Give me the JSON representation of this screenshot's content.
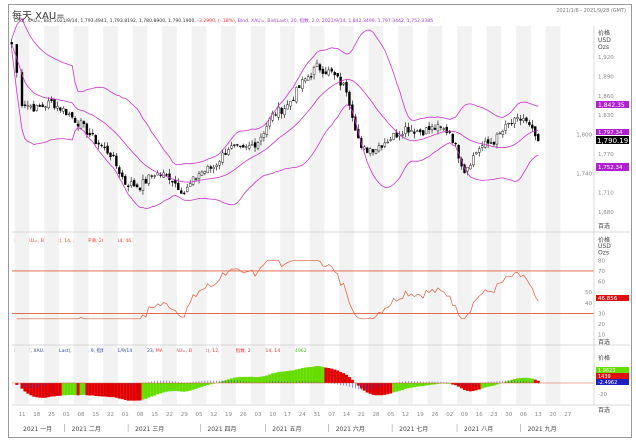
{
  "header": {
    "title": "每天 XAU=",
    "date_range": "2021/1/6 - 2021/9/28 (GMT)"
  },
  "main_legend": {
    "candle": "Cndl, XAU=, Bid, 2021/9/14, 1,793.4941, 1,793.8192, 1,780.8900, 1,790.1900, ",
    "change": "-3.2990, (-.18%), ",
    "bollinger": "Blnd, XAU=, Bid(Last), 20, 指数, 2.0, 2021/9/14, 1,842.3499, 1,797.3442, 1,752.3385"
  },
  "rsi_legend": "RSI, XAU=, Bid(Last), 14, 威尔德平滑, 2021/9/14, 46.856",
  "macd_legend": {
    "a": "MACDF, XAU=, Bid(Last), 12, 26, 9, 指数, 2021/9/14, -1.9623, ",
    "b": "MACD, XAU=, Bid(Last), 12, 26, 9, 指数, 2021/9/14, 1439, ",
    "c": "-2.4962"
  },
  "axis_units": {
    "price": "价格",
    "currency": "USD",
    "unit": "Ozs"
  },
  "axis_footer": "百选",
  "price_tags": {
    "upper": "1,842.35",
    "last": "1,790.19",
    "middle": "1,797.34",
    "lower": "1,752.34",
    "rsi": "46.856",
    "macd1": "1.9623",
    "macd2": "1439",
    "macd3": "-2.4962"
  },
  "colors": {
    "up": "#ffffff",
    "down": "#000000",
    "bollinger": "#cc33cc",
    "rsi": "#e05a3a",
    "macd_pos": "#66dd00",
    "macd_neg": "#e00000",
    "macd_hist": "#3333cc",
    "tag_purple": "#b020d0",
    "tag_red": "#e01010"
  },
  "chart_data": [
    {
      "type": "candlestick",
      "title": "",
      "series": [
        {
          "name": "XAU=",
          "dates": [
            "2021-01-06",
            "2021-01-11",
            "2021-01-18",
            "2021-01-25",
            "2021-02-01",
            "2021-02-08",
            "2021-02-15",
            "2021-02-22",
            "2021-03-01",
            "2021-03-08",
            "2021-03-15",
            "2021-03-22",
            "2021-03-29",
            "2021-04-05",
            "2021-04-12",
            "2021-04-19",
            "2021-04-26",
            "2021-05-03",
            "2021-05-10",
            "2021-05-17",
            "2021-05-24",
            "2021-05-31",
            "2021-06-07",
            "2021-06-14",
            "2021-06-21",
            "2021-06-28",
            "2021-07-05",
            "2021-07-12",
            "2021-07-19",
            "2021-07-26",
            "2021-08-02",
            "2021-08-09",
            "2021-08-16",
            "2021-08-23",
            "2021-08-30",
            "2021-09-06",
            "2021-09-13"
          ],
          "close": [
            1940,
            1850,
            1840,
            1850,
            1835,
            1815,
            1790,
            1770,
            1725,
            1720,
            1740,
            1735,
            1710,
            1740,
            1750,
            1780,
            1775,
            1790,
            1830,
            1845,
            1880,
            1905,
            1895,
            1870,
            1775,
            1780,
            1795,
            1810,
            1805,
            1810,
            1805,
            1745,
            1780,
            1790,
            1815,
            1825,
            1790
          ]
        }
      ],
      "overlay": "Bollinger 20, 2.0",
      "ylim": [
        1665,
        1935
      ],
      "yticks": [
        1920,
        1890,
        1860,
        1830,
        1800,
        1770,
        1740,
        1710,
        1680
      ]
    },
    {
      "type": "line",
      "title": "RSI",
      "ylim": [
        0,
        90
      ],
      "yticks": [
        80,
        70,
        60,
        50,
        40,
        30,
        20,
        10
      ],
      "reference_lines": [
        70,
        30
      ]
    },
    {
      "type": "bar",
      "title": "MACD",
      "yticks": [
        -20
      ]
    }
  ],
  "x_axis": {
    "ticks": [
      "11",
      "18",
      "25",
      "01",
      "08",
      "15",
      "22",
      "01",
      "08",
      "15",
      "22",
      "29",
      "05",
      "12",
      "19",
      "26",
      "03",
      "10",
      "17",
      "24",
      "31",
      "07",
      "14",
      "21",
      "28",
      "05",
      "12",
      "19",
      "26",
      "02",
      "09",
      "16",
      "23",
      "30",
      "06",
      "13",
      "20",
      "27"
    ],
    "months": [
      "2021 一月",
      "2021 二月",
      "2021 三月",
      "2021 四月",
      "2021 五月",
      "2021 六月",
      "2021 七月",
      "2021 八月",
      "2021 九月"
    ]
  }
}
